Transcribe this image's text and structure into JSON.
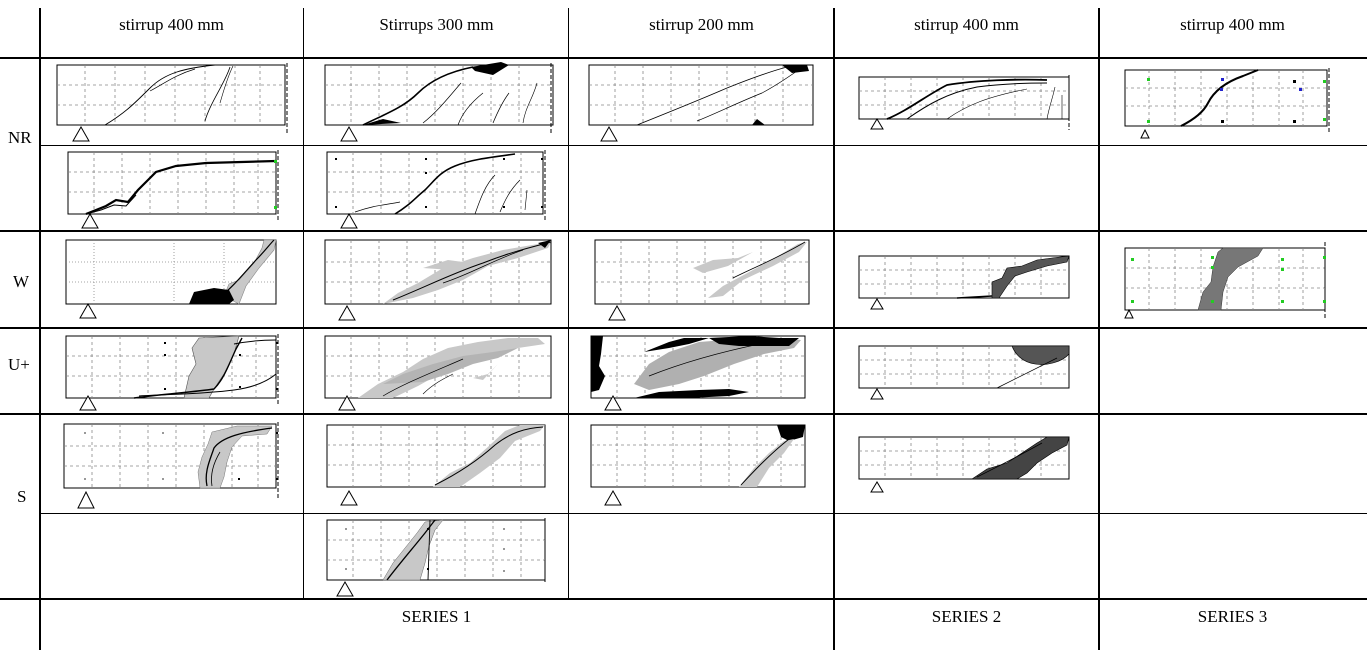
{
  "columns": [
    {
      "id": "c1",
      "label": "stirrup 400 mm"
    },
    {
      "id": "c2",
      "label": "Stirrups 300 mm"
    },
    {
      "id": "c3",
      "label": "stirrup 200 mm"
    },
    {
      "id": "c4",
      "label": "stirrup 400 mm"
    },
    {
      "id": "c5",
      "label": "stirrup 400 mm"
    }
  ],
  "rows": [
    {
      "id": "nr",
      "label": "NR"
    },
    {
      "id": "w",
      "label": "W"
    },
    {
      "id": "uplus",
      "label": "U+"
    },
    {
      "id": "s",
      "label": "S"
    }
  ],
  "series": [
    {
      "label": "SERIES 1"
    },
    {
      "label": "SERIES 2"
    },
    {
      "label": "SERIES 3"
    }
  ],
  "colors": {
    "grid": "#777777",
    "crack": "#000000",
    "spall_light": "#c8c8c8",
    "spall_dark": "#111111",
    "spall_hatched": "#555555",
    "marker_green": "#22cc22",
    "marker_blue": "#2222cc"
  }
}
